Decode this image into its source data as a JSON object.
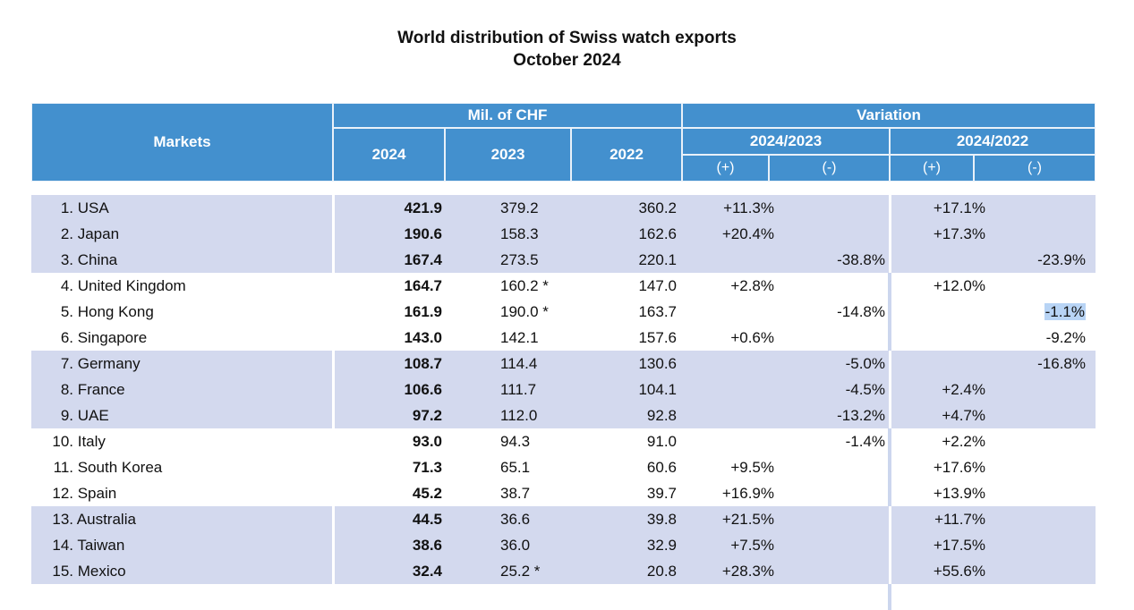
{
  "title": {
    "line1": "World distribution of Swiss watch exports",
    "line2": "October 2024"
  },
  "header": {
    "markets": "Markets",
    "mil_chf": "Mil. of CHF",
    "variation": "Variation",
    "y2024": "2024",
    "y2023": "2023",
    "y2022": "2022",
    "p1": "2024/2023",
    "p2": "2024/2022",
    "plus": "(+)",
    "minus": "(-)"
  },
  "colors": {
    "header_bg": "#4390ce",
    "row_shade": "#d3d9ee",
    "highlight": "#b8d4f5"
  },
  "rows": [
    {
      "rank": "1.",
      "market": "USA",
      "v2024": "421.9",
      "v2023": "379.2",
      "v2022": "360.2",
      "v1p": "+11.3%",
      "v1m": "",
      "v2p": "+17.1%",
      "v2m": ""
    },
    {
      "rank": "2.",
      "market": "Japan",
      "v2024": "190.6",
      "v2023": "158.3",
      "v2022": "162.6",
      "v1p": "+20.4%",
      "v1m": "",
      "v2p": "+17.3%",
      "v2m": ""
    },
    {
      "rank": "3.",
      "market": "China",
      "v2024": "167.4",
      "v2023": "273.5",
      "v2022": "220.1",
      "v1p": "",
      "v1m": "-38.8%",
      "v2p": "",
      "v2m": "-23.9%"
    },
    {
      "rank": "4.",
      "market": "United Kingdom",
      "v2024": "164.7",
      "v2023": "160.2 *",
      "v2022": "147.0",
      "v1p": "+2.8%",
      "v1m": "",
      "v2p": "+12.0%",
      "v2m": ""
    },
    {
      "rank": "5.",
      "market": "Hong Kong",
      "v2024": "161.9",
      "v2023": "190.0 *",
      "v2022": "163.7",
      "v1p": "",
      "v1m": "-14.8%",
      "v2p": "",
      "v2m": "-1.1%"
    },
    {
      "rank": "6.",
      "market": "Singapore",
      "v2024": "143.0",
      "v2023": "142.1",
      "v2022": "157.6",
      "v1p": "+0.6%",
      "v1m": "",
      "v2p": "",
      "v2m": "-9.2%"
    },
    {
      "rank": "7.",
      "market": "Germany",
      "v2024": "108.7",
      "v2023": "114.4",
      "v2022": "130.6",
      "v1p": "",
      "v1m": "-5.0%",
      "v2p": "",
      "v2m": "-16.8%"
    },
    {
      "rank": "8.",
      "market": "France",
      "v2024": "106.6",
      "v2023": "111.7",
      "v2022": "104.1",
      "v1p": "",
      "v1m": "-4.5%",
      "v2p": "+2.4%",
      "v2m": ""
    },
    {
      "rank": "9.",
      "market": "UAE",
      "v2024": "97.2",
      "v2023": "112.0",
      "v2022": "92.8",
      "v1p": "",
      "v1m": "-13.2%",
      "v2p": "+4.7%",
      "v2m": ""
    },
    {
      "rank": "10.",
      "market": "Italy",
      "v2024": "93.0",
      "v2023": "94.3",
      "v2022": "91.0",
      "v1p": "",
      "v1m": "-1.4%",
      "v2p": "+2.2%",
      "v2m": ""
    },
    {
      "rank": "11.",
      "market": "South Korea",
      "v2024": "71.3",
      "v2023": "65.1",
      "v2022": "60.6",
      "v1p": "+9.5%",
      "v1m": "",
      "v2p": "+17.6%",
      "v2m": ""
    },
    {
      "rank": "12.",
      "market": "Spain",
      "v2024": "45.2",
      "v2023": "38.7",
      "v2022": "39.7",
      "v1p": "+16.9%",
      "v1m": "",
      "v2p": "+13.9%",
      "v2m": ""
    },
    {
      "rank": "13.",
      "market": "Australia",
      "v2024": "44.5",
      "v2023": "36.6",
      "v2022": "39.8",
      "v1p": "+21.5%",
      "v1m": "",
      "v2p": "+11.7%",
      "v2m": ""
    },
    {
      "rank": "14.",
      "market": "Taiwan",
      "v2024": "38.6",
      "v2023": "36.0",
      "v2022": "32.9",
      "v1p": "+7.5%",
      "v1m": "",
      "v2p": "+17.5%",
      "v2m": ""
    },
    {
      "rank": "15.",
      "market": "Mexico",
      "v2024": "32.4",
      "v2023": "25.2 *",
      "v2022": "20.8",
      "v1p": "+28.3%",
      "v1m": "",
      "v2p": "+55.6%",
      "v2m": ""
    }
  ]
}
